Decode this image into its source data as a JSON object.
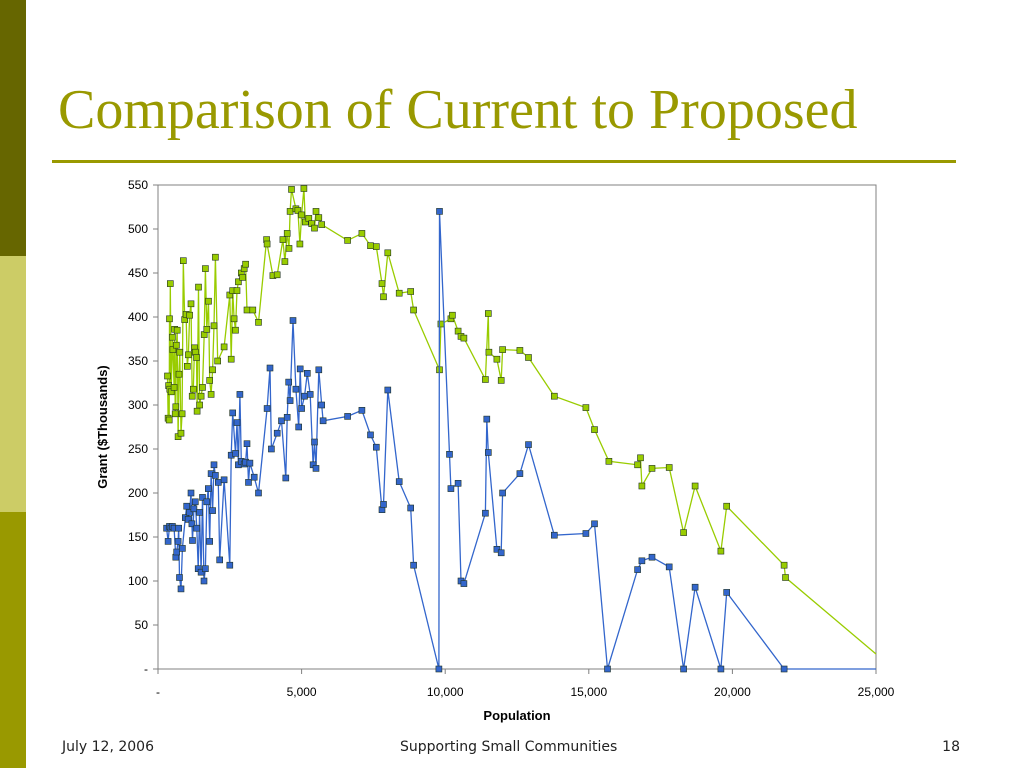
{
  "slide": {
    "title": "Comparison of Current to Proposed",
    "footer_date": "July 12, 2006",
    "footer_center": "Supporting Small Communities",
    "page_number": "18"
  },
  "colors": {
    "accent": "#999900",
    "stripe_dark": "#666600",
    "stripe_light": "#cccc66",
    "blue_series": "#3366cc",
    "green_series": "#99cc00"
  },
  "chart_data": {
    "type": "line",
    "xlabel": "Population",
    "ylabel": "Grant ($Thousands)",
    "xlim": [
      0,
      25000
    ],
    "ylim": [
      0,
      550
    ],
    "x_ticks": [
      0,
      5000,
      10000,
      15000,
      20000,
      25000
    ],
    "x_tick_labels": [
      "-",
      "5,000",
      "10,000",
      "15,000",
      "20,000",
      "25,000"
    ],
    "y_ticks": [
      0,
      50,
      100,
      150,
      200,
      250,
      300,
      350,
      400,
      450,
      500,
      550
    ],
    "y_tick_labels": [
      "-",
      "50",
      "100",
      "150",
      "200",
      "250",
      "300",
      "350",
      "400",
      "450",
      "500",
      "550"
    ],
    "grid": false,
    "legend": "none",
    "series": [
      {
        "color": "#99cc00",
        "points": [
          [
            330,
            333
          ],
          [
            350,
            285
          ],
          [
            370,
            322
          ],
          [
            390,
            283
          ],
          [
            400,
            398
          ],
          [
            410,
            318
          ],
          [
            430,
            438
          ],
          [
            460,
            315
          ],
          [
            500,
            377
          ],
          [
            520,
            363
          ],
          [
            560,
            320
          ],
          [
            580,
            386
          ],
          [
            600,
            290
          ],
          [
            620,
            298
          ],
          [
            640,
            368
          ],
          [
            670,
            385
          ],
          [
            700,
            264
          ],
          [
            730,
            335
          ],
          [
            760,
            360
          ],
          [
            800,
            268
          ],
          [
            840,
            290
          ],
          [
            880,
            464
          ],
          [
            930,
            397
          ],
          [
            980,
            403
          ],
          [
            1020,
            344
          ],
          [
            1060,
            357
          ],
          [
            1100,
            402
          ],
          [
            1150,
            415
          ],
          [
            1190,
            310
          ],
          [
            1230,
            318
          ],
          [
            1270,
            365
          ],
          [
            1300,
            360
          ],
          [
            1340,
            354
          ],
          [
            1360,
            293
          ],
          [
            1410,
            434
          ],
          [
            1450,
            300
          ],
          [
            1500,
            310
          ],
          [
            1550,
            320
          ],
          [
            1610,
            380
          ],
          [
            1650,
            455
          ],
          [
            1700,
            386
          ],
          [
            1760,
            418
          ],
          [
            1800,
            328
          ],
          [
            1850,
            312
          ],
          [
            1900,
            340
          ],
          [
            1950,
            390
          ],
          [
            2000,
            468
          ],
          [
            2080,
            350
          ],
          [
            2300,
            366
          ],
          [
            2500,
            425
          ],
          [
            2550,
            352
          ],
          [
            2600,
            430
          ],
          [
            2650,
            398
          ],
          [
            2700,
            385
          ],
          [
            2750,
            430
          ],
          [
            2800,
            440
          ],
          [
            2900,
            450
          ],
          [
            2950,
            445
          ],
          [
            3000,
            455
          ],
          [
            3050,
            460
          ],
          [
            3100,
            408
          ],
          [
            3300,
            408
          ],
          [
            3500,
            394
          ],
          [
            3780,
            488
          ],
          [
            3800,
            483
          ],
          [
            4000,
            447
          ],
          [
            4150,
            448
          ],
          [
            4350,
            488
          ],
          [
            4420,
            463
          ],
          [
            4500,
            495
          ],
          [
            4560,
            478
          ],
          [
            4600,
            520
          ],
          [
            4650,
            545
          ],
          [
            4800,
            523
          ],
          [
            4870,
            521
          ],
          [
            4940,
            483
          ],
          [
            5000,
            516
          ],
          [
            5080,
            546
          ],
          [
            5130,
            508
          ],
          [
            5250,
            512
          ],
          [
            5350,
            506
          ],
          [
            5450,
            501
          ],
          [
            5500,
            520
          ],
          [
            5600,
            513
          ],
          [
            5700,
            505
          ],
          [
            6600,
            487
          ],
          [
            7100,
            495
          ],
          [
            7400,
            481
          ],
          [
            7600,
            480
          ],
          [
            7800,
            438
          ],
          [
            7850,
            423
          ],
          [
            8000,
            473
          ],
          [
            8400,
            427
          ],
          [
            8800,
            429
          ],
          [
            8900,
            408
          ],
          [
            9800,
            340
          ],
          [
            9850,
            392
          ],
          [
            10200,
            398
          ],
          [
            10250,
            402
          ],
          [
            10450,
            384
          ],
          [
            10550,
            378
          ],
          [
            10650,
            376
          ],
          [
            11400,
            329
          ],
          [
            11500,
            404
          ],
          [
            11520,
            360
          ],
          [
            11800,
            352
          ],
          [
            11950,
            328
          ],
          [
            12000,
            363
          ],
          [
            12600,
            362
          ],
          [
            12900,
            354
          ],
          [
            13800,
            310
          ],
          [
            14900,
            297
          ],
          [
            15200,
            272
          ],
          [
            15700,
            236
          ],
          [
            16700,
            232
          ],
          [
            16800,
            240
          ],
          [
            16850,
            208
          ],
          [
            17200,
            228
          ],
          [
            17800,
            229
          ],
          [
            18300,
            155
          ],
          [
            18700,
            208
          ],
          [
            19600,
            134
          ],
          [
            19800,
            185
          ],
          [
            21800,
            118
          ],
          [
            21850,
            104
          ],
          [
            25000,
            17
          ]
        ]
      },
      {
        "color": "#3366cc",
        "points": [
          [
            300,
            160
          ],
          [
            350,
            145
          ],
          [
            400,
            162
          ],
          [
            450,
            160
          ],
          [
            500,
            162
          ],
          [
            560,
            160
          ],
          [
            620,
            127
          ],
          [
            650,
            133
          ],
          [
            700,
            145
          ],
          [
            720,
            160
          ],
          [
            750,
            104
          ],
          [
            800,
            91
          ],
          [
            850,
            137
          ],
          [
            950,
            172
          ],
          [
            1000,
            185
          ],
          [
            1050,
            170
          ],
          [
            1100,
            178
          ],
          [
            1150,
            200
          ],
          [
            1180,
            165
          ],
          [
            1200,
            146
          ],
          [
            1250,
            182
          ],
          [
            1300,
            190
          ],
          [
            1350,
            160
          ],
          [
            1400,
            114
          ],
          [
            1450,
            178
          ],
          [
            1500,
            110
          ],
          [
            1550,
            195
          ],
          [
            1600,
            100
          ],
          [
            1650,
            114
          ],
          [
            1700,
            190
          ],
          [
            1750,
            205
          ],
          [
            1800,
            145
          ],
          [
            1850,
            222
          ],
          [
            1900,
            180
          ],
          [
            1950,
            232
          ],
          [
            2000,
            220
          ],
          [
            2100,
            212
          ],
          [
            2150,
            124
          ],
          [
            2300,
            215
          ],
          [
            2500,
            118
          ],
          [
            2550,
            243
          ],
          [
            2600,
            291
          ],
          [
            2700,
            245
          ],
          [
            2750,
            280
          ],
          [
            2800,
            232
          ],
          [
            2850,
            312
          ],
          [
            2900,
            236
          ],
          [
            3000,
            233
          ],
          [
            3050,
            235
          ],
          [
            3100,
            256
          ],
          [
            3150,
            212
          ],
          [
            3200,
            234
          ],
          [
            3350,
            218
          ],
          [
            3500,
            200
          ],
          [
            3800,
            296
          ],
          [
            3900,
            342
          ],
          [
            3950,
            250
          ],
          [
            4150,
            268
          ],
          [
            4300,
            282
          ],
          [
            4450,
            217
          ],
          [
            4500,
            286
          ],
          [
            4550,
            326
          ],
          [
            4600,
            305
          ],
          [
            4700,
            396
          ],
          [
            4800,
            318
          ],
          [
            4900,
            275
          ],
          [
            4950,
            341
          ],
          [
            5000,
            296
          ],
          [
            5100,
            310
          ],
          [
            5200,
            336
          ],
          [
            5300,
            312
          ],
          [
            5400,
            232
          ],
          [
            5450,
            258
          ],
          [
            5500,
            228
          ],
          [
            5600,
            340
          ],
          [
            5700,
            300
          ],
          [
            5750,
            282
          ],
          [
            6600,
            287
          ],
          [
            7100,
            294
          ],
          [
            7400,
            266
          ],
          [
            7600,
            252
          ],
          [
            7800,
            181
          ],
          [
            7850,
            187
          ],
          [
            8000,
            317
          ],
          [
            8400,
            213
          ],
          [
            8800,
            183
          ],
          [
            8900,
            118
          ],
          [
            9780,
            0
          ],
          [
            9800,
            520
          ],
          [
            10150,
            244
          ],
          [
            10200,
            205
          ],
          [
            10450,
            211
          ],
          [
            10550,
            100
          ],
          [
            10650,
            97
          ],
          [
            11400,
            177
          ],
          [
            11450,
            284
          ],
          [
            11500,
            246
          ],
          [
            11800,
            136
          ],
          [
            11950,
            132
          ],
          [
            12000,
            200
          ],
          [
            12600,
            222
          ],
          [
            12900,
            255
          ],
          [
            13800,
            152
          ],
          [
            14900,
            154
          ],
          [
            15200,
            165
          ],
          [
            15650,
            0
          ],
          [
            16700,
            113
          ],
          [
            16850,
            123
          ],
          [
            17200,
            127
          ],
          [
            17800,
            116
          ],
          [
            18300,
            0
          ],
          [
            18700,
            93
          ],
          [
            19600,
            0
          ],
          [
            19800,
            87
          ],
          [
            21800,
            0
          ],
          [
            25000,
            0
          ]
        ]
      }
    ]
  }
}
